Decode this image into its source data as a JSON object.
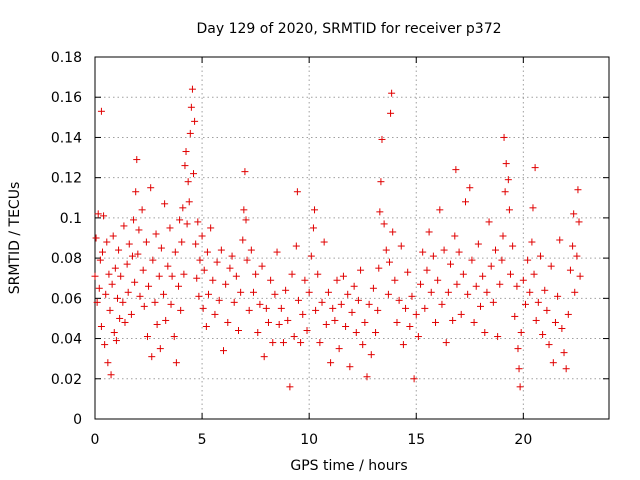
{
  "chart_data": {
    "type": "scatter",
    "title": "Day 129 of 2020, SRMTID for receiver p372",
    "xlabel": "GPS time / hours",
    "ylabel": "SRMTID / TECUs",
    "xlim": [
      0,
      24
    ],
    "ylim": [
      0,
      0.18
    ],
    "xticks": [
      0,
      5,
      10,
      15,
      20
    ],
    "yticks": [
      0,
      0.02,
      0.04,
      0.06,
      0.08,
      0.1,
      0.12,
      0.14,
      0.16,
      0.18
    ],
    "xtick_labels": [
      "0",
      "5",
      "10",
      "15",
      "20"
    ],
    "ytick_labels": [
      "0",
      "0.02",
      "0.04",
      "0.06",
      "0.08",
      "0.1",
      "0.12",
      "0.14",
      "0.16",
      "0.18"
    ],
    "grid": true,
    "marker": "+",
    "series_color": "#e00000",
    "series": [
      {
        "name": "SRMTID",
        "points": [
          [
            0.0,
            0.071
          ],
          [
            0.05,
            0.09
          ],
          [
            0.1,
            0.058
          ],
          [
            0.15,
            0.102
          ],
          [
            0.2,
            0.065
          ],
          [
            0.25,
            0.079
          ],
          [
            0.3,
            0.046
          ],
          [
            0.3,
            0.153
          ],
          [
            0.35,
            0.083
          ],
          [
            0.4,
            0.101
          ],
          [
            0.45,
            0.037
          ],
          [
            0.5,
            0.062
          ],
          [
            0.55,
            0.088
          ],
          [
            0.6,
            0.028
          ],
          [
            0.65,
            0.072
          ],
          [
            0.7,
            0.054
          ],
          [
            0.75,
            0.022
          ],
          [
            0.8,
            0.067
          ],
          [
            0.85,
            0.091
          ],
          [
            0.9,
            0.043
          ],
          [
            0.95,
            0.075
          ],
          [
            1.0,
            0.039
          ],
          [
            1.05,
            0.06
          ],
          [
            1.1,
            0.084
          ],
          [
            1.15,
            0.05
          ],
          [
            1.2,
            0.071
          ],
          [
            1.3,
            0.058
          ],
          [
            1.35,
            0.096
          ],
          [
            1.4,
            0.048
          ],
          [
            1.5,
            0.077
          ],
          [
            1.55,
            0.063
          ],
          [
            1.6,
            0.087
          ],
          [
            1.7,
            0.052
          ],
          [
            1.75,
            0.081
          ],
          [
            1.8,
            0.099
          ],
          [
            1.85,
            0.068
          ],
          [
            1.9,
            0.113
          ],
          [
            1.95,
            0.129
          ],
          [
            2.0,
            0.082
          ],
          [
            2.05,
            0.094
          ],
          [
            2.1,
            0.061
          ],
          [
            2.2,
            0.104
          ],
          [
            2.25,
            0.074
          ],
          [
            2.3,
            0.056
          ],
          [
            2.4,
            0.088
          ],
          [
            2.45,
            0.041
          ],
          [
            2.5,
            0.066
          ],
          [
            2.6,
            0.115
          ],
          [
            2.65,
            0.031
          ],
          [
            2.7,
            0.079
          ],
          [
            2.8,
            0.058
          ],
          [
            2.85,
            0.092
          ],
          [
            2.9,
            0.047
          ],
          [
            3.0,
            0.071
          ],
          [
            3.05,
            0.035
          ],
          [
            3.1,
            0.085
          ],
          [
            3.2,
            0.062
          ],
          [
            3.25,
            0.107
          ],
          [
            3.3,
            0.049
          ],
          [
            3.4,
            0.076
          ],
          [
            3.5,
            0.095
          ],
          [
            3.55,
            0.057
          ],
          [
            3.6,
            0.071
          ],
          [
            3.7,
            0.041
          ],
          [
            3.75,
            0.083
          ],
          [
            3.8,
            0.028
          ],
          [
            3.9,
            0.066
          ],
          [
            3.95,
            0.099
          ],
          [
            4.0,
            0.054
          ],
          [
            4.05,
            0.088
          ],
          [
            4.1,
            0.105
          ],
          [
            4.15,
            0.072
          ],
          [
            4.2,
            0.126
          ],
          [
            4.25,
            0.133
          ],
          [
            4.3,
            0.097
          ],
          [
            4.35,
            0.118
          ],
          [
            4.4,
            0.108
          ],
          [
            4.45,
            0.142
          ],
          [
            4.5,
            0.155
          ],
          [
            4.55,
            0.164
          ],
          [
            4.6,
            0.122
          ],
          [
            4.65,
            0.148
          ],
          [
            4.7,
            0.087
          ],
          [
            4.75,
            0.07
          ],
          [
            4.8,
            0.098
          ],
          [
            4.85,
            0.061
          ],
          [
            4.9,
            0.079
          ],
          [
            5.0,
            0.091
          ],
          [
            5.05,
            0.055
          ],
          [
            5.1,
            0.074
          ],
          [
            5.2,
            0.046
          ],
          [
            5.25,
            0.083
          ],
          [
            5.3,
            0.062
          ],
          [
            5.4,
            0.095
          ],
          [
            5.5,
            0.069
          ],
          [
            5.6,
            0.052
          ],
          [
            5.7,
            0.078
          ],
          [
            5.8,
            0.059
          ],
          [
            5.9,
            0.084
          ],
          [
            6.0,
            0.034
          ],
          [
            6.1,
            0.067
          ],
          [
            6.2,
            0.048
          ],
          [
            6.3,
            0.075
          ],
          [
            6.4,
            0.081
          ],
          [
            6.5,
            0.058
          ],
          [
            6.6,
            0.071
          ],
          [
            6.7,
            0.044
          ],
          [
            6.8,
            0.063
          ],
          [
            6.9,
            0.089
          ],
          [
            6.95,
            0.104
          ],
          [
            7.0,
            0.123
          ],
          [
            7.05,
            0.099
          ],
          [
            7.1,
            0.079
          ],
          [
            7.2,
            0.054
          ],
          [
            7.3,
            0.084
          ],
          [
            7.4,
            0.063
          ],
          [
            7.5,
            0.072
          ],
          [
            7.6,
            0.043
          ],
          [
            7.7,
            0.057
          ],
          [
            7.8,
            0.076
          ],
          [
            7.9,
            0.031
          ],
          [
            8.0,
            0.055
          ],
          [
            8.1,
            0.048
          ],
          [
            8.2,
            0.069
          ],
          [
            8.3,
            0.038
          ],
          [
            8.4,
            0.062
          ],
          [
            8.5,
            0.083
          ],
          [
            8.6,
            0.047
          ],
          [
            8.7,
            0.055
          ],
          [
            8.8,
            0.038
          ],
          [
            8.9,
            0.064
          ],
          [
            9.0,
            0.049
          ],
          [
            9.1,
            0.016
          ],
          [
            9.2,
            0.072
          ],
          [
            9.3,
            0.041
          ],
          [
            9.4,
            0.086
          ],
          [
            9.45,
            0.113
          ],
          [
            9.5,
            0.059
          ],
          [
            9.6,
            0.038
          ],
          [
            9.7,
            0.052
          ],
          [
            9.8,
            0.069
          ],
          [
            9.9,
            0.044
          ],
          [
            10.0,
            0.063
          ],
          [
            10.1,
            0.081
          ],
          [
            10.2,
            0.095
          ],
          [
            10.25,
            0.104
          ],
          [
            10.3,
            0.054
          ],
          [
            10.4,
            0.072
          ],
          [
            10.5,
            0.038
          ],
          [
            10.6,
            0.058
          ],
          [
            10.7,
            0.088
          ],
          [
            10.8,
            0.047
          ],
          [
            10.9,
            0.063
          ],
          [
            11.0,
            0.028
          ],
          [
            11.1,
            0.055
          ],
          [
            11.2,
            0.049
          ],
          [
            11.3,
            0.069
          ],
          [
            11.4,
            0.035
          ],
          [
            11.5,
            0.057
          ],
          [
            11.6,
            0.071
          ],
          [
            11.7,
            0.046
          ],
          [
            11.8,
            0.062
          ],
          [
            11.9,
            0.026
          ],
          [
            12.0,
            0.053
          ],
          [
            12.1,
            0.066
          ],
          [
            12.2,
            0.043
          ],
          [
            12.3,
            0.059
          ],
          [
            12.4,
            0.074
          ],
          [
            12.5,
            0.037
          ],
          [
            12.6,
            0.048
          ],
          [
            12.7,
            0.021
          ],
          [
            12.8,
            0.057
          ],
          [
            12.9,
            0.032
          ],
          [
            13.0,
            0.065
          ],
          [
            13.1,
            0.043
          ],
          [
            13.2,
            0.054
          ],
          [
            13.25,
            0.075
          ],
          [
            13.3,
            0.103
          ],
          [
            13.35,
            0.118
          ],
          [
            13.4,
            0.139
          ],
          [
            13.5,
            0.097
          ],
          [
            13.6,
            0.084
          ],
          [
            13.7,
            0.062
          ],
          [
            13.75,
            0.078
          ],
          [
            13.8,
            0.152
          ],
          [
            13.85,
            0.162
          ],
          [
            13.9,
            0.093
          ],
          [
            14.0,
            0.069
          ],
          [
            14.1,
            0.048
          ],
          [
            14.2,
            0.059
          ],
          [
            14.3,
            0.086
          ],
          [
            14.4,
            0.037
          ],
          [
            14.5,
            0.055
          ],
          [
            14.6,
            0.073
          ],
          [
            14.7,
            0.046
          ],
          [
            14.8,
            0.061
          ],
          [
            14.9,
            0.02
          ],
          [
            15.0,
            0.052
          ],
          [
            15.1,
            0.041
          ],
          [
            15.2,
            0.067
          ],
          [
            15.3,
            0.083
          ],
          [
            15.4,
            0.055
          ],
          [
            15.5,
            0.074
          ],
          [
            15.6,
            0.093
          ],
          [
            15.7,
            0.063
          ],
          [
            15.8,
            0.081
          ],
          [
            15.9,
            0.048
          ],
          [
            16.0,
            0.069
          ],
          [
            16.1,
            0.104
          ],
          [
            16.2,
            0.057
          ],
          [
            16.3,
            0.084
          ],
          [
            16.4,
            0.038
          ],
          [
            16.5,
            0.063
          ],
          [
            16.6,
            0.077
          ],
          [
            16.7,
            0.049
          ],
          [
            16.8,
            0.091
          ],
          [
            16.85,
            0.124
          ],
          [
            16.9,
            0.067
          ],
          [
            17.0,
            0.083
          ],
          [
            17.1,
            0.052
          ],
          [
            17.2,
            0.072
          ],
          [
            17.3,
            0.108
          ],
          [
            17.4,
            0.062
          ],
          [
            17.5,
            0.115
          ],
          [
            17.6,
            0.079
          ],
          [
            17.7,
            0.048
          ],
          [
            17.8,
            0.066
          ],
          [
            17.9,
            0.087
          ],
          [
            18.0,
            0.056
          ],
          [
            18.1,
            0.071
          ],
          [
            18.2,
            0.043
          ],
          [
            18.3,
            0.063
          ],
          [
            18.4,
            0.098
          ],
          [
            18.5,
            0.076
          ],
          [
            18.6,
            0.058
          ],
          [
            18.7,
            0.084
          ],
          [
            18.8,
            0.041
          ],
          [
            18.9,
            0.067
          ],
          [
            19.0,
            0.079
          ],
          [
            19.05,
            0.091
          ],
          [
            19.1,
            0.14
          ],
          [
            19.15,
            0.113
          ],
          [
            19.2,
            0.127
          ],
          [
            19.3,
            0.119
          ],
          [
            19.35,
            0.104
          ],
          [
            19.4,
            0.072
          ],
          [
            19.5,
            0.086
          ],
          [
            19.6,
            0.051
          ],
          [
            19.7,
            0.066
          ],
          [
            19.75,
            0.035
          ],
          [
            19.8,
            0.025
          ],
          [
            19.85,
            0.016
          ],
          [
            19.9,
            0.043
          ],
          [
            20.0,
            0.069
          ],
          [
            20.1,
            0.057
          ],
          [
            20.2,
            0.079
          ],
          [
            20.3,
            0.063
          ],
          [
            20.4,
            0.088
          ],
          [
            20.45,
            0.105
          ],
          [
            20.5,
            0.072
          ],
          [
            20.55,
            0.125
          ],
          [
            20.6,
            0.049
          ],
          [
            20.7,
            0.058
          ],
          [
            20.8,
            0.081
          ],
          [
            20.9,
            0.042
          ],
          [
            21.0,
            0.064
          ],
          [
            21.1,
            0.054
          ],
          [
            21.2,
            0.037
          ],
          [
            21.3,
            0.076
          ],
          [
            21.4,
            0.028
          ],
          [
            21.5,
            0.048
          ],
          [
            21.6,
            0.061
          ],
          [
            21.7,
            0.089
          ],
          [
            21.8,
            0.045
          ],
          [
            21.9,
            0.033
          ],
          [
            22.0,
            0.025
          ],
          [
            22.1,
            0.052
          ],
          [
            22.2,
            0.074
          ],
          [
            22.3,
            0.086
          ],
          [
            22.35,
            0.102
          ],
          [
            22.4,
            0.063
          ],
          [
            22.5,
            0.081
          ],
          [
            22.55,
            0.114
          ],
          [
            22.6,
            0.098
          ],
          [
            22.65,
            0.071
          ]
        ]
      }
    ]
  }
}
